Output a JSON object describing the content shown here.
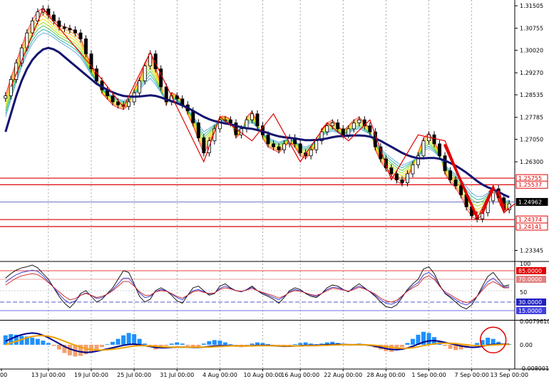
{
  "colors": {
    "candle": "#000000",
    "ma_fan": [
      "#ff2020",
      "#ff7f00",
      "#ffc000",
      "#e8e000",
      "#a0e000",
      "#40c040",
      "#20b0a0",
      "#60a0e0"
    ],
    "ma_main": "#12126e",
    "zigzag": "#e00000",
    "level_line": "#e00000",
    "current_line": "#6060c0",
    "osc_black": "#000000",
    "osc_blue": "#3030d0",
    "osc_red": "#d02020",
    "hist_pos": "#1e90ff",
    "hist_neg": "#f4a070",
    "macd_main": "#00008b",
    "macd_signal": "#f0a000",
    "highlight_circle": "#e00000",
    "level_85": "#e00000",
    "level_70": "#e08080",
    "level_30": "#2020c0",
    "level_15": "#4040e0"
  },
  "chart_data": [
    {
      "type": "candlestick",
      "panel": "main",
      "ylim": [
        1.23,
        1.3165
      ],
      "y_ticks": [
        "1.31505",
        "1.30755",
        "1.30020",
        "1.29270",
        "1.28535",
        "1.27785",
        "1.27050",
        "1.26300",
        "1.23345"
      ],
      "x_ticks": [
        "00",
        "13 Jul 00:00",
        "19 Jul 00:00",
        "25 Jul 00:00",
        "31 Jul 00:00",
        "4 Aug 00:00",
        "10 Aug 00:00",
        "16 Aug 00:00",
        "22 Aug 00:00",
        "28 Aug 00:00",
        "1 Sep 00:00",
        "7 Sep 00:00",
        "13 Sep 00:00"
      ],
      "price_tags": [
        {
          "value": 1.25755,
          "label": "1.25755",
          "style": "red"
        },
        {
          "value": 1.25537,
          "label": "1.25537",
          "style": "red"
        },
        {
          "value": 1.24962,
          "label": "1.24962",
          "style": "current"
        },
        {
          "value": 1.24374,
          "label": "1.24374",
          "style": "red"
        },
        {
          "value": 1.24141,
          "label": "1.24141",
          "style": "red"
        }
      ],
      "close": [
        1.285,
        1.2905,
        1.296,
        1.301,
        1.306,
        1.31,
        1.313,
        1.314,
        1.312,
        1.31,
        1.308,
        1.3075,
        1.307,
        1.306,
        1.304,
        1.299,
        1.294,
        1.29,
        1.287,
        1.285,
        1.283,
        1.282,
        1.2815,
        1.283,
        1.286,
        1.29,
        1.295,
        1.299,
        1.294,
        1.288,
        1.283,
        1.285,
        1.284,
        1.282,
        1.28,
        1.276,
        1.271,
        1.266,
        1.27,
        1.274,
        1.277,
        1.277,
        1.276,
        1.272,
        1.274,
        1.277,
        1.279,
        1.275,
        1.272,
        1.269,
        1.268,
        1.267,
        1.269,
        1.271,
        1.269,
        1.266,
        1.265,
        1.267,
        1.27,
        1.273,
        1.275,
        1.276,
        1.274,
        1.272,
        1.274,
        1.276,
        1.277,
        1.275,
        1.273,
        1.268,
        1.264,
        1.261,
        1.259,
        1.257,
        1.256,
        1.259,
        1.262,
        1.265,
        1.27,
        1.272,
        1.269,
        1.265,
        1.26,
        1.257,
        1.255,
        1.252,
        1.248,
        1.245,
        1.244,
        1.246,
        1.25,
        1.254,
        1.251,
        1.247,
        1.249
      ],
      "ma_main": [
        1.273,
        1.279,
        1.285,
        1.29,
        1.294,
        1.297,
        1.299,
        1.3005,
        1.301,
        1.3005,
        1.2995,
        1.298,
        1.2965,
        1.295,
        1.2935,
        1.292,
        1.2905,
        1.289,
        1.288,
        1.287,
        1.2862,
        1.2855,
        1.285,
        1.2848,
        1.2847,
        1.2848,
        1.285,
        1.2852,
        1.285,
        1.2845,
        1.2838,
        1.2832,
        1.2826,
        1.2818,
        1.281,
        1.28,
        1.279,
        1.278,
        1.2772,
        1.2766,
        1.2762,
        1.2758,
        1.2755,
        1.275,
        1.2745,
        1.2742,
        1.274,
        1.2736,
        1.2731,
        1.2726,
        1.272,
        1.2715,
        1.2712,
        1.271,
        1.2708,
        1.2705,
        1.2702,
        1.2702,
        1.2703,
        1.2705,
        1.2708,
        1.2712,
        1.2715,
        1.2716,
        1.2717,
        1.2718,
        1.2718,
        1.2717,
        1.2714,
        1.2708,
        1.27,
        1.269,
        1.268,
        1.267,
        1.266,
        1.2652,
        1.2646,
        1.2642,
        1.2642,
        1.2643,
        1.2643,
        1.264,
        1.2634,
        1.2626,
        1.2617,
        1.2606,
        1.2594,
        1.258,
        1.2566,
        1.2554,
        1.2545,
        1.2538,
        1.253,
        1.252,
        1.2512
      ],
      "zigzag": [
        [
          1,
          1.288
        ],
        [
          7,
          1.314
        ],
        [
          16,
          1.295
        ],
        [
          22,
          1.2812
        ],
        [
          27,
          1.2995
        ],
        [
          37,
          1.263
        ],
        [
          40,
          1.278
        ],
        [
          46,
          1.27
        ],
        [
          50,
          1.279
        ],
        [
          55,
          1.263
        ],
        [
          60,
          1.276
        ],
        [
          64,
          1.27
        ],
        [
          68,
          1.277
        ],
        [
          72,
          1.257
        ],
        [
          77,
          1.272
        ],
        [
          82,
          1.27
        ],
        [
          88,
          1.244
        ],
        [
          91,
          1.255
        ],
        [
          93,
          1.246
        ],
        [
          95,
          1.249
        ]
      ],
      "arrows": [
        [
          82,
          1.2685,
          88,
          1.2445
        ],
        [
          89,
          1.246,
          91,
          1.2545
        ],
        [
          92,
          1.253,
          93,
          1.247
        ]
      ]
    },
    {
      "type": "line",
      "panel": "stochastic",
      "ylim": [
        0,
        100
      ],
      "y_ticks": [
        "100",
        "50"
      ],
      "levels": [
        {
          "value": 85,
          "label": "85.0000",
          "style": "red"
        },
        {
          "value": 70,
          "label": "70.0000",
          "style": "pink"
        },
        {
          "value": 30,
          "label": "30.0000",
          "style": "blue"
        },
        {
          "value": 15,
          "label": "15.0000",
          "style": "blue"
        }
      ],
      "series": [
        {
          "values": [
            72,
            80,
            86,
            90,
            92,
            95,
            90,
            80,
            70,
            55,
            40,
            28,
            20,
            30,
            45,
            50,
            40,
            30,
            35,
            45,
            55,
            70,
            85,
            82,
            62,
            40,
            30,
            35,
            50,
            55,
            50,
            42,
            32,
            28,
            42,
            55,
            58,
            50,
            42,
            45,
            58,
            62,
            55,
            50,
            48,
            52,
            58,
            50,
            44,
            40,
            35,
            28,
            38,
            50,
            55,
            52,
            45,
            40,
            38,
            45,
            55,
            60,
            58,
            52,
            48,
            56,
            62,
            55,
            48,
            40,
            30,
            22,
            20,
            25,
            38,
            52,
            62,
            70,
            88,
            92,
            80,
            60,
            45,
            38,
            30,
            22,
            18,
            25,
            40,
            58,
            75,
            82,
            70,
            58,
            60
          ]
        },
        {
          "values": [
            65,
            72,
            78,
            82,
            84,
            86,
            84,
            76,
            66,
            55,
            44,
            34,
            28,
            32,
            42,
            46,
            42,
            36,
            38,
            44,
            52,
            62,
            72,
            72,
            60,
            46,
            38,
            40,
            48,
            52,
            50,
            44,
            38,
            34,
            42,
            50,
            52,
            48,
            44,
            46,
            54,
            58,
            54,
            50,
            48,
            52,
            56,
            50,
            46,
            42,
            38,
            34,
            40,
            48,
            52,
            50,
            46,
            42,
            40,
            45,
            52,
            56,
            55,
            52,
            49,
            54,
            58,
            54,
            48,
            42,
            34,
            28,
            26,
            30,
            40,
            50,
            58,
            64,
            78,
            82,
            74,
            58,
            46,
            40,
            34,
            28,
            25,
            30,
            40,
            54,
            66,
            72,
            64,
            56,
            57
          ]
        },
        {
          "values": [
            60,
            66,
            72,
            76,
            78,
            80,
            78,
            72,
            64,
            56,
            48,
            40,
            34,
            36,
            42,
            45,
            42,
            38,
            40,
            44,
            50,
            58,
            66,
            66,
            58,
            48,
            42,
            42,
            48,
            50,
            49,
            45,
            40,
            37,
            42,
            48,
            50,
            47,
            45,
            46,
            52,
            55,
            53,
            50,
            49,
            51,
            54,
            50,
            47,
            44,
            41,
            37,
            41,
            47,
            50,
            49,
            46,
            43,
            42,
            45,
            50,
            54,
            53,
            51,
            49,
            52,
            56,
            53,
            49,
            44,
            37,
            32,
            30,
            33,
            41,
            49,
            55,
            60,
            72,
            76,
            70,
            58,
            48,
            43,
            37,
            32,
            29,
            32,
            40,
            51,
            61,
            66,
            61,
            55,
            55
          ]
        }
      ]
    },
    {
      "type": "bar",
      "panel": "macd",
      "ylim": [
        -0.0080017,
        0.007961
      ],
      "y_ticks": [
        "0.0079610",
        "0.00",
        "-0.0080017"
      ],
      "circle_label_index": 91,
      "histogram": [
        0.0032,
        0.0036,
        0.0034,
        0.003,
        0.0028,
        0.0024,
        0.002,
        0.0014,
        0.0006,
        -0.0004,
        -0.0016,
        -0.0028,
        -0.0036,
        -0.004,
        -0.0038,
        -0.0032,
        -0.0024,
        -0.0016,
        -0.0008,
        0.0002,
        0.001,
        0.002,
        0.0032,
        0.004,
        0.0036,
        0.002,
        0.0004,
        -0.0008,
        -0.0016,
        -0.0012,
        -0.0004,
        0.0004,
        0.0008,
        0.0004,
        -0.0004,
        -0.001,
        -0.0006,
        0.0004,
        0.0012,
        0.0016,
        0.0014,
        0.0008,
        0.0002,
        -0.0004,
        -0.0008,
        -0.0004,
        0.0004,
        0.0008,
        0.0006,
        0.0002,
        -0.0002,
        -0.0006,
        -0.0008,
        -0.0004,
        0.0002,
        0.0006,
        0.0008,
        0.0004,
        0.0002,
        0.0004,
        0.0008,
        0.001,
        0.0006,
        0.0002,
        0.0,
        0.0002,
        0.0004,
        0.0002,
        -0.0004,
        -0.001,
        -0.0016,
        -0.0022,
        -0.0024,
        -0.0018,
        -0.0008,
        0.0006,
        0.002,
        0.0034,
        0.0044,
        0.004,
        0.0026,
        0.001,
        -0.0004,
        -0.0014,
        -0.0018,
        -0.0016,
        -0.001,
        -0.0004,
        0.0006,
        0.0016,
        0.0024,
        0.002,
        0.001,
        0.0004,
        0.0002
      ],
      "series": [
        {
          "values": [
            0.0012,
            0.002,
            0.0028,
            0.0034,
            0.0038,
            0.004,
            0.0038,
            0.0032,
            0.0024,
            0.0014,
            0.0004,
            -0.0006,
            -0.0014,
            -0.002,
            -0.0024,
            -0.0026,
            -0.0025,
            -0.0022,
            -0.0018,
            -0.0014,
            -0.001,
            -0.0006,
            -0.0002,
            0.0001,
            0.0002,
            0.0,
            -0.0003,
            -0.0006,
            -0.0009,
            -0.001,
            -0.001,
            -0.0009,
            -0.0008,
            -0.0008,
            -0.0008,
            -0.0009,
            -0.0009,
            -0.0008,
            -0.0006,
            -0.0004,
            -0.0003,
            -0.0003,
            -0.0003,
            -0.0004,
            -0.0004,
            -0.0004,
            -0.0003,
            -0.0002,
            -0.0002,
            -0.0002,
            -0.0003,
            -0.0004,
            -0.0005,
            -0.0005,
            -0.0004,
            -0.0003,
            -0.0002,
            -0.0002,
            -0.0002,
            -0.0001,
            0.0,
            0.0001,
            0.0001,
            0.0001,
            0.0,
            0.0,
            0.0,
            0.0,
            -0.0002,
            -0.0005,
            -0.0009,
            -0.0013,
            -0.0016,
            -0.0017,
            -0.0015,
            -0.0011,
            -0.0005,
            0.0002,
            0.0009,
            0.0013,
            0.0014,
            0.0012,
            0.0008,
            0.0004,
            0.0,
            -0.0004,
            -0.0007,
            -0.0009,
            -0.0008,
            -0.0005,
            -0.0001,
            0.0001,
            0.0002,
            0.0002,
            0.0002
          ]
        },
        {
          "values": [
            0.0,
            0.0006,
            0.0012,
            0.0018,
            0.0024,
            0.0028,
            0.0031,
            0.0031,
            0.0029,
            0.0025,
            0.0019,
            0.0012,
            0.0005,
            -0.0002,
            -0.0008,
            -0.0013,
            -0.0016,
            -0.0018,
            -0.0018,
            -0.0017,
            -0.0015,
            -0.0013,
            -0.001,
            -0.0007,
            -0.0004,
            -0.0003,
            -0.0003,
            -0.0004,
            -0.0005,
            -0.0007,
            -0.0008,
            -0.0008,
            -0.0008,
            -0.0008,
            -0.0008,
            -0.0008,
            -0.0008,
            -0.0008,
            -0.0008,
            -0.0007,
            -0.0006,
            -0.0005,
            -0.0004,
            -0.0004,
            -0.0004,
            -0.0004,
            -0.0004,
            -0.0003,
            -0.0003,
            -0.0003,
            -0.0003,
            -0.0003,
            -0.0004,
            -0.0004,
            -0.0004,
            -0.0004,
            -0.0003,
            -0.0003,
            -0.0003,
            -0.0002,
            -0.0002,
            -0.0001,
            -0.0001,
            0.0,
            0.0,
            0.0,
            0.0,
            0.0,
            -0.0001,
            -0.0002,
            -0.0004,
            -0.0007,
            -0.0009,
            -0.0011,
            -0.0012,
            -0.0012,
            -0.001,
            -0.0007,
            -0.0003,
            0.0,
            0.0003,
            0.0005,
            0.0005,
            0.0005,
            0.0004,
            0.0002,
            0.0,
            -0.0002,
            -0.0003,
            -0.0003,
            -0.0002,
            -0.0001,
            0.0,
            0.0001,
            0.0001
          ]
        }
      ]
    }
  ]
}
